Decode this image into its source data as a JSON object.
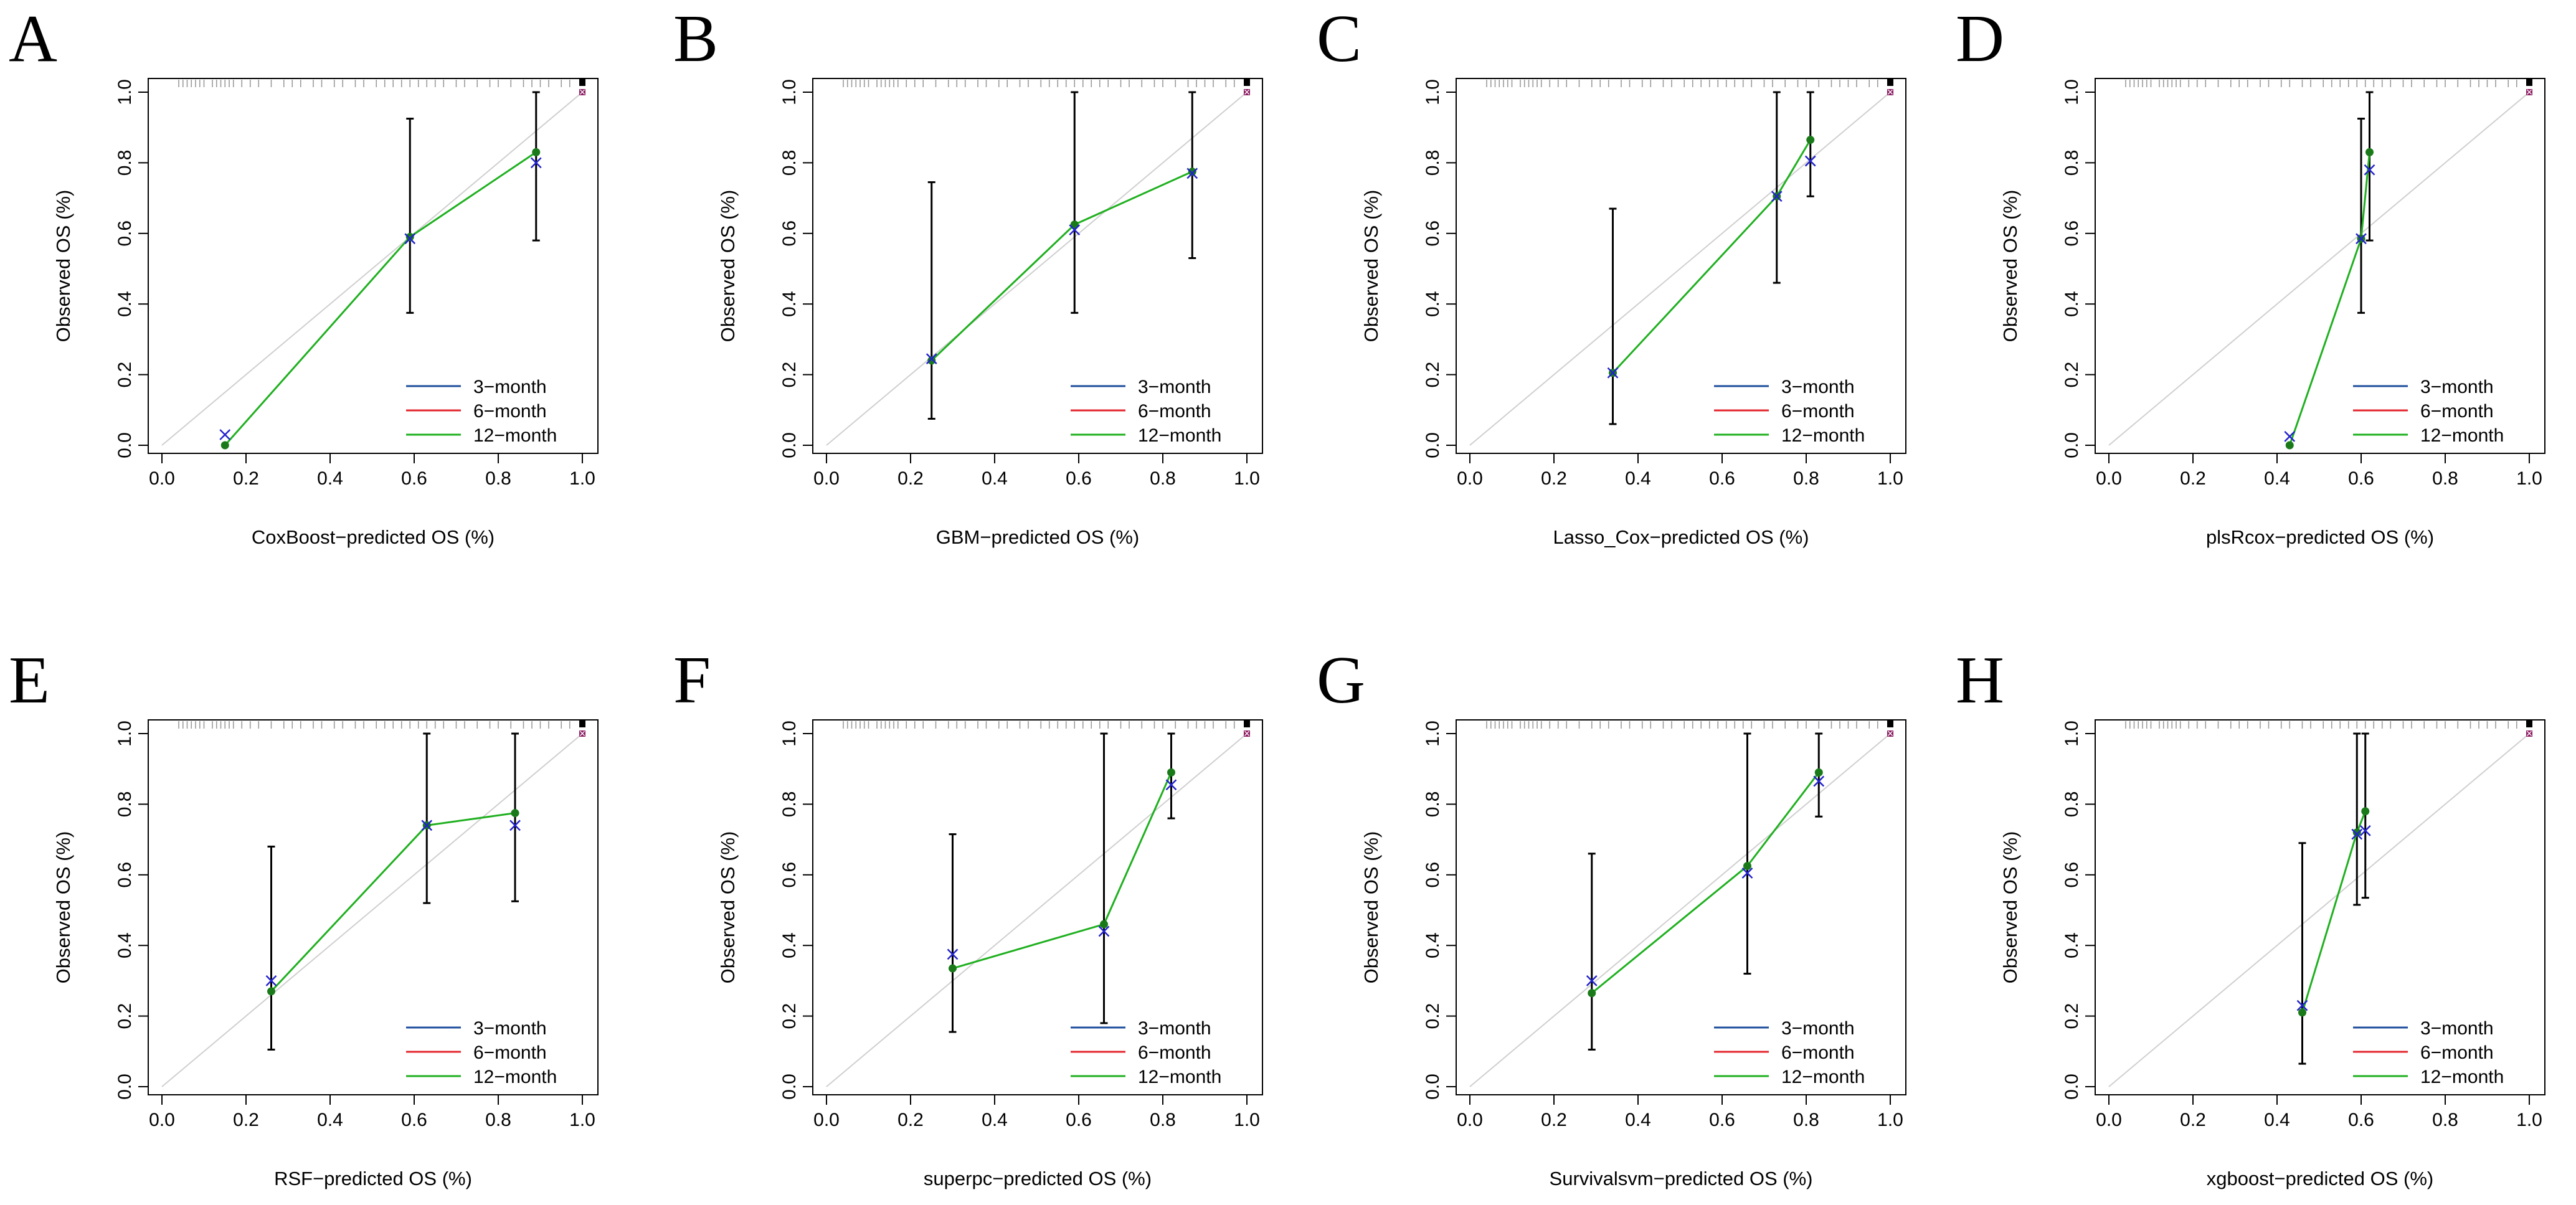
{
  "legend_labels": [
    "3−month",
    "6−month",
    "12−month"
  ],
  "colors": {
    "three_month": "#1f4e9c",
    "six_month": "#e3242b",
    "twelve_month": "#1fb01f",
    "cross_marker": "#2222cc",
    "dot_marker": "#1a7a1a",
    "diagonal": "#cfcfcf",
    "rug": "#9a9a9a"
  },
  "chart_data": [
    {
      "panel": "A",
      "type": "scatter",
      "xlabel": "CoxBoost−predicted OS (%)",
      "ylabel": "Observed OS (%)",
      "xlim": [
        0,
        1
      ],
      "ylim": [
        0,
        1
      ],
      "xticks": [
        "0.0",
        "0.2",
        "0.4",
        "0.6",
        "0.8",
        "1.0"
      ],
      "yticks": [
        "0.0",
        "0.2",
        "0.4",
        "0.6",
        "0.8",
        "1.0"
      ],
      "legend_position": "bottom-right",
      "series": [
        {
          "name": "12−month",
          "x": [
            0.15,
            0.59,
            0.89
          ],
          "y": [
            0.0,
            0.59,
            0.83
          ]
        }
      ],
      "estimates": [
        0.03,
        0.585,
        0.8
      ],
      "error_bars": [
        null,
        [
          0.375,
          0.925
        ],
        [
          0.58,
          1.0
        ]
      ],
      "rug": [
        0.04,
        0.05,
        0.06,
        0.07,
        0.08,
        0.09,
        0.1,
        0.12,
        0.13,
        0.14,
        0.15,
        0.16,
        0.17,
        0.19,
        0.21,
        0.23,
        0.26,
        0.29,
        0.31,
        0.33,
        0.36,
        0.38,
        0.41,
        0.43,
        0.46,
        0.48,
        0.51,
        0.53,
        0.55,
        0.57,
        0.59,
        0.61,
        0.63,
        0.65,
        0.67,
        0.7,
        0.72,
        0.75,
        0.78,
        0.8,
        0.83,
        0.86,
        0.88,
        0.9,
        0.92,
        0.95,
        0.97
      ]
    },
    {
      "panel": "B",
      "type": "scatter",
      "xlabel": "GBM−predicted OS (%)",
      "ylabel": "Observed OS (%)",
      "xlim": [
        0,
        1
      ],
      "ylim": [
        0,
        1
      ],
      "xticks": [
        "0.0",
        "0.2",
        "0.4",
        "0.6",
        "0.8",
        "1.0"
      ],
      "yticks": [
        "0.0",
        "0.2",
        "0.4",
        "0.6",
        "0.8",
        "1.0"
      ],
      "legend_position": "bottom-right",
      "series": [
        {
          "name": "12−month",
          "x": [
            0.25,
            0.59,
            0.87
          ],
          "y": [
            0.24,
            0.625,
            0.775
          ]
        }
      ],
      "estimates": [
        0.245,
        0.61,
        0.77
      ],
      "error_bars": [
        [
          0.075,
          0.745
        ],
        [
          0.375,
          1.0
        ],
        [
          0.53,
          1.0
        ]
      ],
      "rug": [
        0.04,
        0.05,
        0.06,
        0.07,
        0.08,
        0.09,
        0.1,
        0.12,
        0.13,
        0.14,
        0.15,
        0.16,
        0.17,
        0.19,
        0.21,
        0.23,
        0.26,
        0.29,
        0.31,
        0.33,
        0.36,
        0.38,
        0.41,
        0.43,
        0.46,
        0.48,
        0.51,
        0.53,
        0.55,
        0.57,
        0.59,
        0.61,
        0.63,
        0.65,
        0.67,
        0.7,
        0.72,
        0.75,
        0.78,
        0.8,
        0.83,
        0.86,
        0.88,
        0.9,
        0.92,
        0.95,
        0.97
      ]
    },
    {
      "panel": "C",
      "type": "scatter",
      "xlabel": "Lasso_Cox−predicted OS (%)",
      "ylabel": "Observed OS (%)",
      "xlim": [
        0,
        1
      ],
      "ylim": [
        0,
        1
      ],
      "xticks": [
        "0.0",
        "0.2",
        "0.4",
        "0.6",
        "0.8",
        "1.0"
      ],
      "yticks": [
        "0.0",
        "0.2",
        "0.4",
        "0.6",
        "0.8",
        "1.0"
      ],
      "legend_position": "bottom-right",
      "series": [
        {
          "name": "12−month",
          "x": [
            0.34,
            0.73,
            0.81
          ],
          "y": [
            0.205,
            0.705,
            0.865
          ]
        }
      ],
      "estimates": [
        0.205,
        0.705,
        0.805
      ],
      "error_bars": [
        [
          0.06,
          0.67
        ],
        [
          0.46,
          1.0
        ],
        [
          0.705,
          1.0
        ]
      ],
      "rug": [
        0.04,
        0.05,
        0.06,
        0.07,
        0.08,
        0.09,
        0.1,
        0.12,
        0.13,
        0.14,
        0.15,
        0.16,
        0.17,
        0.19,
        0.21,
        0.23,
        0.26,
        0.29,
        0.31,
        0.33,
        0.36,
        0.38,
        0.41,
        0.43,
        0.46,
        0.48,
        0.51,
        0.53,
        0.55,
        0.57,
        0.59,
        0.61,
        0.63,
        0.65,
        0.67,
        0.7,
        0.72,
        0.75,
        0.78,
        0.8,
        0.83,
        0.86,
        0.88,
        0.9,
        0.92,
        0.95,
        0.97
      ]
    },
    {
      "panel": "D",
      "type": "scatter",
      "xlabel": "plsRcox−predicted OS (%)",
      "ylabel": "Observed OS (%)",
      "xlim": [
        0,
        1
      ],
      "ylim": [
        0,
        1
      ],
      "xticks": [
        "0.0",
        "0.2",
        "0.4",
        "0.6",
        "0.8",
        "1.0"
      ],
      "yticks": [
        "0.0",
        "0.2",
        "0.4",
        "0.6",
        "0.8",
        "1.0"
      ],
      "legend_position": "bottom-right",
      "series": [
        {
          "name": "12−month",
          "x": [
            0.43,
            0.6,
            0.62
          ],
          "y": [
            0.0,
            0.585,
            0.83
          ]
        }
      ],
      "estimates": [
        0.025,
        0.585,
        0.78
      ],
      "error_bars": [
        null,
        [
          0.375,
          0.925
        ],
        [
          0.58,
          1.0
        ]
      ],
      "rug": [
        0.04,
        0.05,
        0.06,
        0.07,
        0.08,
        0.09,
        0.1,
        0.12,
        0.13,
        0.14,
        0.15,
        0.16,
        0.17,
        0.19,
        0.21,
        0.23,
        0.26,
        0.29,
        0.31,
        0.33,
        0.36,
        0.38,
        0.41,
        0.43,
        0.46,
        0.48,
        0.51,
        0.53,
        0.55,
        0.57,
        0.59,
        0.61,
        0.63,
        0.65,
        0.67,
        0.7,
        0.72,
        0.75,
        0.78,
        0.8,
        0.83,
        0.86,
        0.88,
        0.9,
        0.92,
        0.95,
        0.97
      ]
    },
    {
      "panel": "E",
      "type": "scatter",
      "xlabel": "RSF−predicted OS (%)",
      "ylabel": "Observed OS (%)",
      "xlim": [
        0,
        1
      ],
      "ylim": [
        0,
        1
      ],
      "xticks": [
        "0.0",
        "0.2",
        "0.4",
        "0.6",
        "0.8",
        "1.0"
      ],
      "yticks": [
        "0.0",
        "0.2",
        "0.4",
        "0.6",
        "0.8",
        "1.0"
      ],
      "legend_position": "bottom-right",
      "series": [
        {
          "name": "12−month",
          "x": [
            0.26,
            0.63,
            0.84
          ],
          "y": [
            0.27,
            0.74,
            0.775
          ]
        }
      ],
      "estimates": [
        0.3,
        0.74,
        0.74
      ],
      "error_bars": [
        [
          0.105,
          0.68
        ],
        [
          0.52,
          1.0
        ],
        [
          0.525,
          1.0
        ]
      ],
      "rug": [
        0.04,
        0.05,
        0.06,
        0.07,
        0.08,
        0.09,
        0.1,
        0.12,
        0.13,
        0.14,
        0.15,
        0.16,
        0.17,
        0.19,
        0.21,
        0.23,
        0.26,
        0.29,
        0.31,
        0.33,
        0.36,
        0.38,
        0.41,
        0.43,
        0.46,
        0.48,
        0.51,
        0.53,
        0.55,
        0.57,
        0.59,
        0.61,
        0.63,
        0.65,
        0.67,
        0.7,
        0.72,
        0.75,
        0.78,
        0.8,
        0.83,
        0.86,
        0.88,
        0.9,
        0.92,
        0.95,
        0.97
      ]
    },
    {
      "panel": "F",
      "type": "scatter",
      "xlabel": "superpc−predicted OS (%)",
      "ylabel": "Observed OS (%)",
      "xlim": [
        0,
        1
      ],
      "ylim": [
        0,
        1
      ],
      "xticks": [
        "0.0",
        "0.2",
        "0.4",
        "0.6",
        "0.8",
        "1.0"
      ],
      "yticks": [
        "0.0",
        "0.2",
        "0.4",
        "0.6",
        "0.8",
        "1.0"
      ],
      "legend_position": "bottom-right",
      "series": [
        {
          "name": "12−month",
          "x": [
            0.3,
            0.66,
            0.82
          ],
          "y": [
            0.335,
            0.46,
            0.89
          ]
        }
      ],
      "estimates": [
        0.375,
        0.44,
        0.855
      ],
      "error_bars": [
        [
          0.155,
          0.715
        ],
        [
          0.18,
          1.0
        ],
        [
          0.76,
          1.0
        ]
      ],
      "rug": [
        0.04,
        0.05,
        0.06,
        0.07,
        0.08,
        0.09,
        0.1,
        0.12,
        0.13,
        0.14,
        0.15,
        0.16,
        0.17,
        0.19,
        0.21,
        0.23,
        0.26,
        0.29,
        0.31,
        0.33,
        0.36,
        0.38,
        0.41,
        0.43,
        0.46,
        0.48,
        0.51,
        0.53,
        0.55,
        0.57,
        0.59,
        0.61,
        0.63,
        0.65,
        0.67,
        0.7,
        0.72,
        0.75,
        0.78,
        0.8,
        0.83,
        0.86,
        0.88,
        0.9,
        0.92,
        0.95,
        0.97
      ]
    },
    {
      "panel": "G",
      "type": "scatter",
      "xlabel": "Survivalsvm−predicted OS (%)",
      "ylabel": "Observed OS (%)",
      "xlim": [
        0,
        1
      ],
      "ylim": [
        0,
        1
      ],
      "xticks": [
        "0.0",
        "0.2",
        "0.4",
        "0.6",
        "0.8",
        "1.0"
      ],
      "yticks": [
        "0.0",
        "0.2",
        "0.4",
        "0.6",
        "0.8",
        "1.0"
      ],
      "legend_position": "bottom-right",
      "series": [
        {
          "name": "12−month",
          "x": [
            0.29,
            0.66,
            0.83
          ],
          "y": [
            0.265,
            0.625,
            0.89
          ]
        }
      ],
      "estimates": [
        0.3,
        0.605,
        0.865
      ],
      "error_bars": [
        [
          0.105,
          0.66
        ],
        [
          0.32,
          1.0
        ],
        [
          0.765,
          1.0
        ]
      ],
      "rug": [
        0.04,
        0.05,
        0.06,
        0.07,
        0.08,
        0.09,
        0.1,
        0.12,
        0.13,
        0.14,
        0.15,
        0.16,
        0.17,
        0.19,
        0.21,
        0.23,
        0.26,
        0.29,
        0.31,
        0.33,
        0.36,
        0.38,
        0.41,
        0.43,
        0.46,
        0.48,
        0.51,
        0.53,
        0.55,
        0.57,
        0.59,
        0.61,
        0.63,
        0.65,
        0.67,
        0.7,
        0.72,
        0.75,
        0.78,
        0.8,
        0.83,
        0.86,
        0.88,
        0.9,
        0.92,
        0.95,
        0.97
      ]
    },
    {
      "panel": "H",
      "type": "scatter",
      "xlabel": "xgboost−predicted OS (%)",
      "ylabel": "Observed OS (%)",
      "xlim": [
        0,
        1
      ],
      "ylim": [
        0,
        1
      ],
      "xticks": [
        "0.0",
        "0.2",
        "0.4",
        "0.6",
        "0.8",
        "1.0"
      ],
      "yticks": [
        "0.0",
        "0.2",
        "0.4",
        "0.6",
        "0.8",
        "1.0"
      ],
      "legend_position": "bottom-right",
      "series": [
        {
          "name": "12−month",
          "x": [
            0.46,
            0.59,
            0.61
          ],
          "y": [
            0.21,
            0.72,
            0.78
          ]
        }
      ],
      "estimates": [
        0.23,
        0.715,
        0.725
      ],
      "error_bars": [
        [
          0.065,
          0.69
        ],
        [
          0.515,
          1.0
        ],
        [
          0.535,
          1.0
        ]
      ],
      "rug": [
        0.04,
        0.05,
        0.06,
        0.07,
        0.08,
        0.09,
        0.1,
        0.12,
        0.13,
        0.14,
        0.15,
        0.16,
        0.17,
        0.19,
        0.21,
        0.23,
        0.26,
        0.29,
        0.31,
        0.33,
        0.36,
        0.38,
        0.41,
        0.43,
        0.46,
        0.48,
        0.51,
        0.53,
        0.55,
        0.57,
        0.59,
        0.61,
        0.63,
        0.65,
        0.67,
        0.7,
        0.72,
        0.75,
        0.78,
        0.8,
        0.83,
        0.86,
        0.88,
        0.9,
        0.92,
        0.95,
        0.97
      ]
    }
  ]
}
